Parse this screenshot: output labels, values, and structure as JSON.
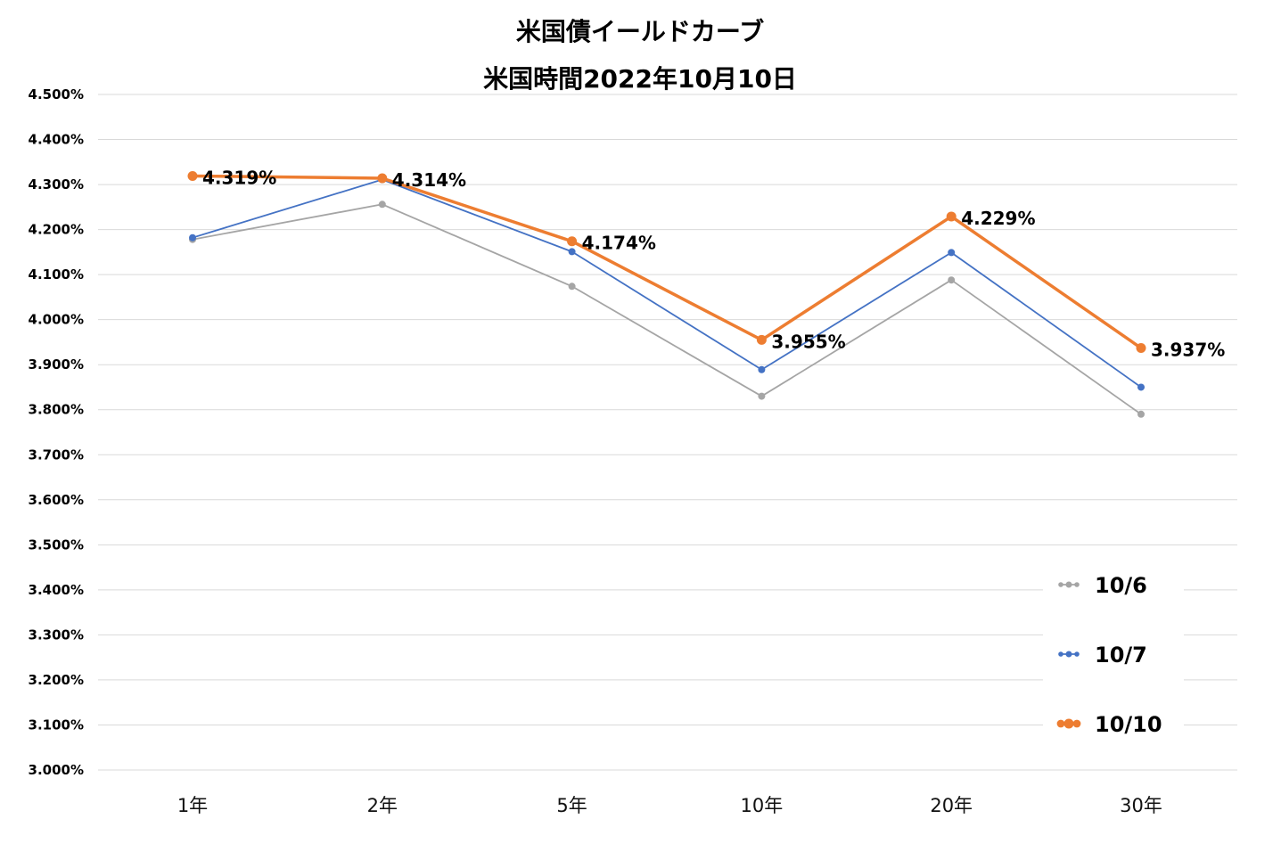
{
  "chart_data": {
    "type": "line",
    "title": "米国債イールドカーブ",
    "subtitle": "米国時間2022年10月10日",
    "categories": [
      "1年",
      "2年",
      "5年",
      "10年",
      "20年",
      "30年"
    ],
    "yticks": [
      "4.500%",
      "4.400%",
      "4.300%",
      "4.200%",
      "4.100%",
      "4.000%",
      "3.900%",
      "3.800%",
      "3.700%",
      "3.600%",
      "3.500%",
      "3.400%",
      "3.300%",
      "3.200%",
      "3.100%",
      "3.000%"
    ],
    "ylim": [
      3.0,
      4.5
    ],
    "grid": true,
    "legend_position": "bottom-right",
    "series": [
      {
        "name": "10/6",
        "color": "#a5a5a5",
        "values": [
          4.178,
          4.256,
          4.074,
          3.83,
          4.088,
          3.79
        ]
      },
      {
        "name": "10/7",
        "color": "#4472c4",
        "values": [
          4.182,
          4.311,
          4.151,
          3.889,
          4.149,
          3.85
        ]
      },
      {
        "name": "10/10",
        "color": "#ed7d31",
        "values": [
          4.319,
          4.314,
          4.174,
          3.955,
          4.229,
          3.937
        ],
        "data_labels": [
          "4.319%",
          "4.314%",
          "4.174%",
          "3.955%",
          "4.229%",
          "3.937%"
        ]
      }
    ]
  }
}
